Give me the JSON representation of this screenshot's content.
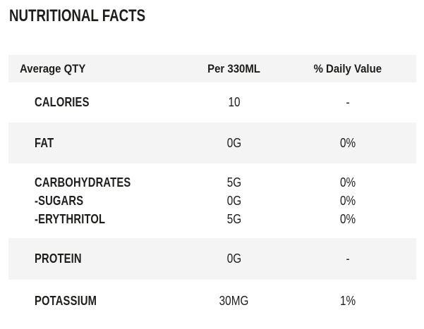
{
  "title": "NUTRITIONAL FACTS",
  "colors": {
    "background": "#ffffff",
    "band_gray": "#f4f4f4",
    "text": "#1d1d1b"
  },
  "table": {
    "header": {
      "qty": "Average QTY",
      "per": "Per 330ML",
      "daily": "% Daily Value"
    },
    "rows": [
      {
        "label": "CALORIES",
        "per_330ml": "10",
        "daily_value": "-"
      },
      {
        "label": "FAT",
        "per_330ml": "0G",
        "daily_value": "0%"
      },
      {
        "label": "CARBOHYDRATES",
        "per_330ml": "5G",
        "daily_value": "0%"
      },
      {
        "label": "-SUGARS",
        "per_330ml": "0G",
        "daily_value": "0%"
      },
      {
        "label": "-ERYTHRITOL",
        "per_330ml": "5G",
        "daily_value": "0%"
      },
      {
        "label": "PROTEIN",
        "per_330ml": "0G",
        "daily_value": "-"
      },
      {
        "label": "POTASSIUM",
        "per_330ml": "30MG",
        "daily_value": "1%"
      }
    ]
  }
}
